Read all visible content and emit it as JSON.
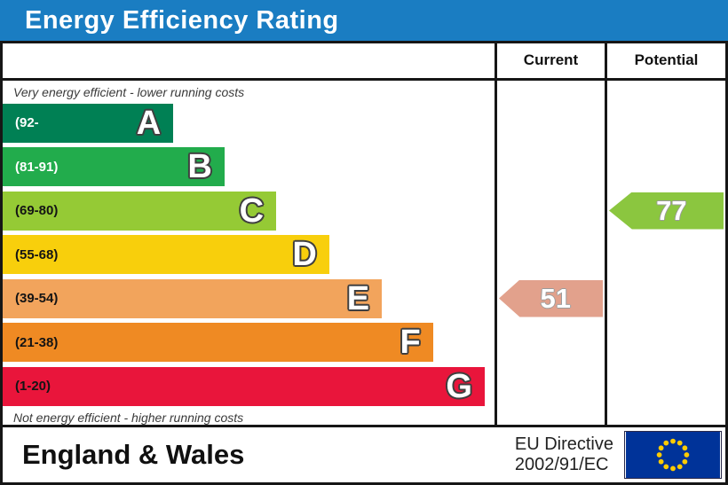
{
  "title": "Energy Efficiency Rating",
  "header": {
    "current": "Current",
    "potential": "Potential"
  },
  "notes": {
    "top": "Very energy efficient - lower running costs",
    "bottom": "Not energy efficient - higher running costs"
  },
  "bands": [
    {
      "letter": "A",
      "range": "(92-",
      "color": "#008054",
      "label_color": "#ffffff",
      "width_pct": 34.7
    },
    {
      "letter": "B",
      "range": "(81-91)",
      "color": "#22AC4C",
      "label_color": "#ffffff",
      "width_pct": 45.1
    },
    {
      "letter": "C",
      "range": "(69-80)",
      "color": "#95CA35",
      "label_color": "#141414",
      "width_pct": 55.6
    },
    {
      "letter": "D",
      "range": "(55-68)",
      "color": "#F8CF0C",
      "label_color": "#141414",
      "width_pct": 66.4
    },
    {
      "letter": "E",
      "range": "(39-54)",
      "color": "#F2A45C",
      "label_color": "#141414",
      "width_pct": 77.1
    },
    {
      "letter": "F",
      "range": "(21-38)",
      "color": "#EF8A23",
      "label_color": "#141414",
      "width_pct": 87.5
    },
    {
      "letter": "G",
      "range": "(1-20)",
      "color": "#E9153B",
      "label_color": "#141414",
      "width_pct": 98.0
    }
  ],
  "ratings": {
    "current": {
      "value": "51",
      "color": "#E2A18C",
      "band_index": 4
    },
    "potential": {
      "value": "77",
      "color": "#8BC63F",
      "band_index": 2
    }
  },
  "footer": {
    "region": "England & Wales",
    "directive_line1": "EU Directive",
    "directive_line2": "2002/91/EC"
  },
  "colors": {
    "title_bar": "#1A7DC2",
    "border": "#161616",
    "eu_flag_blue": "#003399",
    "eu_star_yellow": "#FFCC00"
  },
  "chart_data": {
    "type": "bar",
    "title": "Energy Efficiency Rating",
    "categories": [
      "A",
      "B",
      "C",
      "D",
      "E",
      "F",
      "G"
    ],
    "band_ranges": [
      "(92-",
      "(81-91)",
      "(69-80)",
      "(55-68)",
      "(39-54)",
      "(21-38)",
      "(1-20)"
    ],
    "band_colors": [
      "#008054",
      "#22AC4C",
      "#95CA35",
      "#F8CF0C",
      "#F2A45C",
      "#EF8A23",
      "#E9153B"
    ],
    "bar_lengths_pct": [
      34.7,
      45.1,
      55.6,
      66.4,
      77.1,
      87.5,
      98.0
    ],
    "annotations_top": "Very energy efficient - lower running costs",
    "annotations_bottom": "Not energy efficient - higher running costs",
    "columns": [
      "Current",
      "Potential"
    ],
    "current_rating": 51,
    "current_band": "E",
    "potential_rating": 77,
    "potential_band": "C",
    "footer_region": "England & Wales",
    "eu_directive": "EU Directive 2002/91/EC"
  }
}
